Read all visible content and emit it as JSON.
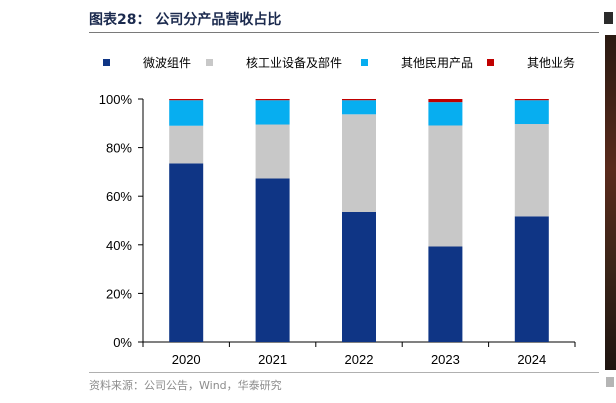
{
  "page": {
    "title": "图表28：  公司分产品营收占比",
    "source": "资料来源：公司公告，Wind，华泰研究"
  },
  "chart_data": {
    "type": "bar",
    "stacked": true,
    "categories": [
      "2020",
      "2021",
      "2022",
      "2023",
      "2024"
    ],
    "series": [
      {
        "name": "微波组件",
        "color": "#0f3585",
        "values": [
          73.5,
          67.3,
          53.5,
          39.3,
          51.7
        ]
      },
      {
        "name": "核工业设备及部件",
        "color": "#c8c8c8",
        "values": [
          15.5,
          22.2,
          40.2,
          49.8,
          38.0
        ]
      },
      {
        "name": "其他民用产品",
        "color": "#07aef0",
        "values": [
          10.5,
          10.0,
          5.8,
          9.6,
          9.8
        ]
      },
      {
        "name": "其他业务",
        "color": "#c00000",
        "values": [
          0.5,
          0.5,
          0.5,
          1.3,
          0.5
        ]
      }
    ],
    "ylim": [
      0,
      100
    ],
    "yticks": [
      "0%",
      "20%",
      "40%",
      "60%",
      "80%",
      "100%"
    ],
    "grid": false,
    "legend_position": "top"
  }
}
